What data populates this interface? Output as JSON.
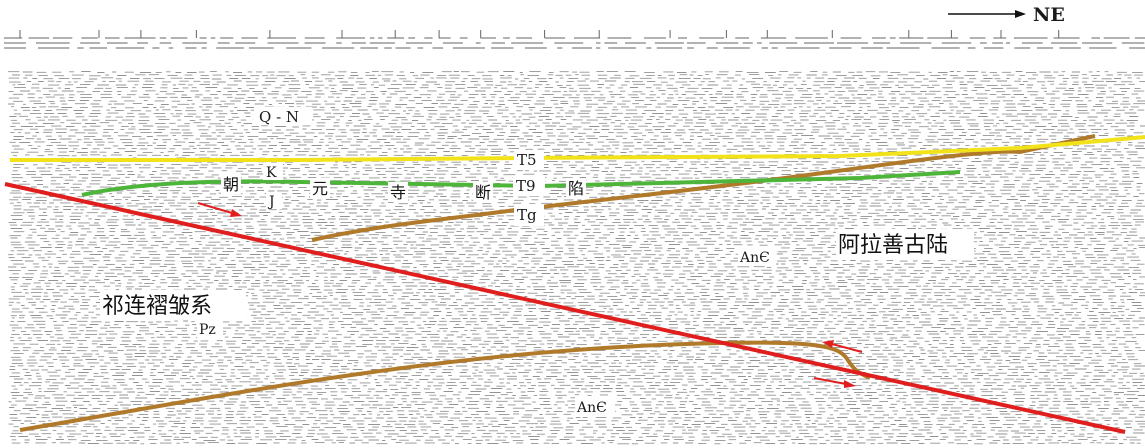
{
  "direction": {
    "label": "NE"
  },
  "units": {
    "qn": "Q - N",
    "k": "K",
    "j": "J",
    "pz": "Pz",
    "an_upper": "AnЄ",
    "an_lower": "AnЄ"
  },
  "horizons": {
    "t5": "T5",
    "t9": "T9",
    "tg": "Tg"
  },
  "depression_chars": [
    "朝",
    "元",
    "寺",
    "断",
    "陷"
  ],
  "regions": {
    "qilian": "祁连褶皱系",
    "alashan": "阿拉善古陆"
  },
  "colors": {
    "t5_line": "#f2e21a",
    "t9_line": "#4db53a",
    "tg_line": "#b07a2a",
    "fault": "#e01e1e",
    "arrow": "#e01e1e",
    "seismic": "#3a3a3a"
  }
}
